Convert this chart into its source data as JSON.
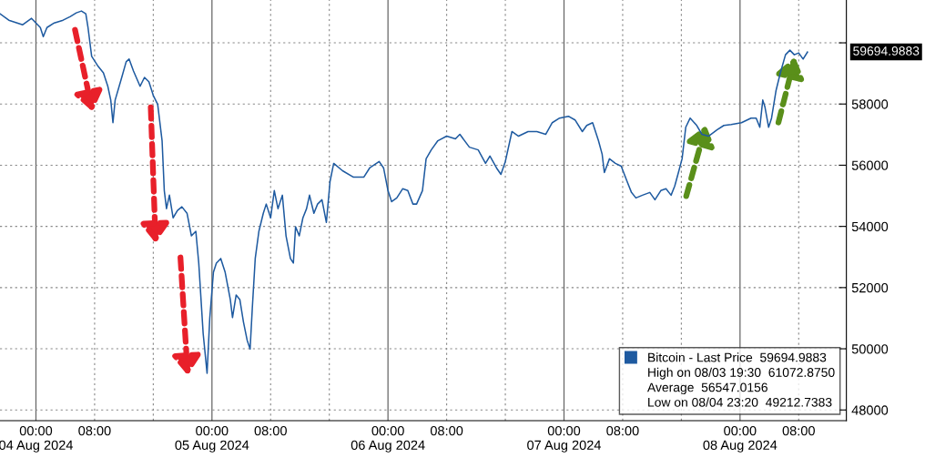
{
  "chart_data": {
    "type": "line",
    "x": [
      "2024-08-03T19:06",
      "2024-08-03T20:18",
      "2024-08-03T22:12",
      "2024-08-03T23:24",
      "2024-08-04T00:36",
      "2024-08-04T01:00",
      "2024-08-04T01:30",
      "2024-08-04T02:30",
      "2024-08-04T03:42",
      "2024-08-04T04:42",
      "2024-08-04T05:30",
      "2024-08-04T06:12",
      "2024-08-04T06:48",
      "2024-08-04T07:06",
      "2024-08-04T07:36",
      "2024-08-04T08:24",
      "2024-08-04T09:12",
      "2024-08-04T09:48",
      "2024-08-04T10:12",
      "2024-08-04T10:30",
      "2024-08-04T10:48",
      "2024-08-04T11:42",
      "2024-08-04T12:18",
      "2024-08-04T12:42",
      "2024-08-04T13:18",
      "2024-08-04T14:12",
      "2024-08-04T14:48",
      "2024-08-04T15:24",
      "2024-08-04T16:00",
      "2024-08-04T16:36",
      "2024-08-04T17:12",
      "2024-08-04T17:30",
      "2024-08-04T17:48",
      "2024-08-04T18:12",
      "2024-08-04T18:42",
      "2024-08-04T19:18",
      "2024-08-04T19:54",
      "2024-08-04T20:36",
      "2024-08-04T21:12",
      "2024-08-04T21:48",
      "2024-08-04T22:12",
      "2024-08-04T22:48",
      "2024-08-04T23:20",
      "2024-08-04T23:42",
      "2024-08-05T00:12",
      "2024-08-05T00:36",
      "2024-08-05T01:12",
      "2024-08-05T01:48",
      "2024-08-05T02:30",
      "2024-08-05T02:48",
      "2024-08-05T03:18",
      "2024-08-05T03:48",
      "2024-08-05T04:18",
      "2024-08-05T04:48",
      "2024-08-05T05:12",
      "2024-08-05T05:30",
      "2024-08-05T05:54",
      "2024-08-05T06:24",
      "2024-08-05T07:00",
      "2024-08-05T07:24",
      "2024-08-05T08:00",
      "2024-08-05T08:30",
      "2024-08-05T09:00",
      "2024-08-05T09:36",
      "2024-08-05T10:06",
      "2024-08-05T10:42",
      "2024-08-05T11:06",
      "2024-08-05T11:24",
      "2024-08-05T11:54",
      "2024-08-05T12:24",
      "2024-08-05T12:54",
      "2024-08-05T13:18",
      "2024-08-05T13:54",
      "2024-08-05T14:24",
      "2024-08-05T15:00",
      "2024-08-05T15:36",
      "2024-08-05T16:06",
      "2024-08-05T16:36",
      "2024-08-05T17:48",
      "2024-08-05T19:18",
      "2024-08-05T20:42",
      "2024-08-05T21:30",
      "2024-08-05T22:48",
      "2024-08-05T23:24",
      "2024-08-06T00:00",
      "2024-08-06T00:30",
      "2024-08-06T01:12",
      "2024-08-06T02:00",
      "2024-08-06T02:42",
      "2024-08-06T03:24",
      "2024-08-06T03:54",
      "2024-08-06T04:42",
      "2024-08-06T05:12",
      "2024-08-06T05:54",
      "2024-08-06T06:48",
      "2024-08-06T08:00",
      "2024-08-06T09:12",
      "2024-08-06T09:48",
      "2024-08-06T11:06",
      "2024-08-06T12:18",
      "2024-08-06T13:18",
      "2024-08-06T13:54",
      "2024-08-06T14:48",
      "2024-08-06T15:24",
      "2024-08-06T16:00",
      "2024-08-06T16:54",
      "2024-08-06T17:48",
      "2024-08-06T19:06",
      "2024-08-06T20:18",
      "2024-08-06T21:30",
      "2024-08-06T22:24",
      "2024-08-06T23:24",
      "2024-08-07T00:36",
      "2024-08-07T01:30",
      "2024-08-07T02:30",
      "2024-08-07T03:06",
      "2024-08-07T03:54",
      "2024-08-07T04:42",
      "2024-08-07T05:12",
      "2024-08-07T05:30",
      "2024-08-07T06:12",
      "2024-08-07T07:00",
      "2024-08-07T07:48",
      "2024-08-07T08:36",
      "2024-08-07T09:12",
      "2024-08-07T09:48",
      "2024-08-07T10:42",
      "2024-08-07T11:42",
      "2024-08-07T12:24",
      "2024-08-07T13:12",
      "2024-08-07T13:54",
      "2024-08-07T14:36",
      "2024-08-07T15:06",
      "2024-08-07T15:36",
      "2024-08-07T16:06",
      "2024-08-07T16:36",
      "2024-08-07T17:12",
      "2024-08-07T18:06",
      "2024-08-07T18:48",
      "2024-08-07T19:42",
      "2024-08-07T20:54",
      "2024-08-07T21:48",
      "2024-08-07T22:48",
      "2024-08-08T00:12",
      "2024-08-08T01:30",
      "2024-08-08T02:12",
      "2024-08-08T02:42",
      "2024-08-08T03:06",
      "2024-08-08T03:24",
      "2024-08-08T03:54",
      "2024-08-08T04:18",
      "2024-08-08T04:54",
      "2024-08-08T05:30",
      "2024-08-08T06:12",
      "2024-08-08T06:48",
      "2024-08-08T07:24",
      "2024-08-08T08:00",
      "2024-08-08T08:36",
      "2024-08-08T09:12"
    ],
    "series": [
      {
        "name": "Bitcoin - Last Price  59694.9883",
        "color": "#1e5aa0",
        "values": [
          60950,
          60740,
          60590,
          60800,
          60500,
          60200,
          60500,
          60650,
          60740,
          60860,
          60980,
          61040,
          60950,
          60500,
          59560,
          59260,
          59020,
          58580,
          58130,
          57390,
          58130,
          58870,
          59380,
          59470,
          59080,
          58580,
          58870,
          58730,
          58280,
          57990,
          56800,
          55170,
          54580,
          55020,
          54280,
          54520,
          54640,
          54430,
          53690,
          53840,
          52800,
          50500,
          49200,
          51000,
          52500,
          52800,
          52950,
          52500,
          51610,
          51020,
          51760,
          51610,
          50870,
          50280,
          49990,
          51320,
          52950,
          53840,
          54430,
          54730,
          54280,
          55170,
          54580,
          55020,
          53690,
          52950,
          52800,
          53990,
          53690,
          54280,
          54580,
          55020,
          54430,
          54730,
          54870,
          54130,
          55470,
          56060,
          55820,
          55610,
          55610,
          55910,
          56120,
          55910,
          55170,
          54810,
          54930,
          55230,
          55170,
          54730,
          54730,
          55170,
          56210,
          56500,
          56800,
          56950,
          56860,
          57010,
          56590,
          56500,
          56060,
          56300,
          55910,
          55700,
          56120,
          57100,
          56950,
          57100,
          57100,
          57010,
          57390,
          57540,
          57600,
          57480,
          57100,
          57300,
          57390,
          56800,
          56360,
          55760,
          56210,
          56060,
          55970,
          55470,
          55110,
          54930,
          55020,
          55110,
          54870,
          55170,
          55230,
          55020,
          55320,
          55760,
          56210,
          57240,
          57540,
          57300,
          57010,
          56950,
          57160,
          57300,
          57330,
          57390,
          57540,
          57540,
          57240,
          58130,
          57900,
          57240,
          57540,
          58430,
          59020,
          59610,
          59760,
          59610,
          59670,
          59470,
          59700
        ]
      }
    ],
    "xlim": [
      "2024-08-03T19:06",
      "2024-08-08T14:30"
    ],
    "xticks": [
      {
        "value": "2024-08-04T00:00",
        "label": "00:00\n04 Aug 2024"
      },
      {
        "value": "2024-08-04T08:00",
        "label": "08:00"
      },
      {
        "value": "2024-08-04T16:00",
        "label": null
      },
      {
        "value": "2024-08-05T00:00",
        "label": "00:00\n05 Aug 2024"
      },
      {
        "value": "2024-08-05T08:00",
        "label": "08:00"
      },
      {
        "value": "2024-08-05T16:00",
        "label": null
      },
      {
        "value": "2024-08-06T00:00",
        "label": "00:00\n06 Aug 2024"
      },
      {
        "value": "2024-08-06T08:00",
        "label": "08:00"
      },
      {
        "value": "2024-08-06T16:00",
        "label": null
      },
      {
        "value": "2024-08-07T00:00",
        "label": "00:00\n07 Aug 2024"
      },
      {
        "value": "2024-08-07T08:00",
        "label": "08:00"
      },
      {
        "value": "2024-08-07T16:00",
        "label": null
      },
      {
        "value": "2024-08-08T00:00",
        "label": "00:00\n08 Aug 2024"
      },
      {
        "value": "2024-08-08T08:00",
        "label": "08:00"
      }
    ],
    "ylim": [
      47650,
      61400
    ],
    "yticks": [
      48000,
      50000,
      52000,
      54000,
      56000,
      58000,
      {
        "value": 60000,
        "label": null
      }
    ],
    "grid": true,
    "legend": "bottom right",
    "annotations": [
      "59694.9883",
      "High on 08/03 19:30  61072.8750",
      "Average  56547.0156",
      "Low on 08/04 23:20  49212.7383"
    ]
  }
}
